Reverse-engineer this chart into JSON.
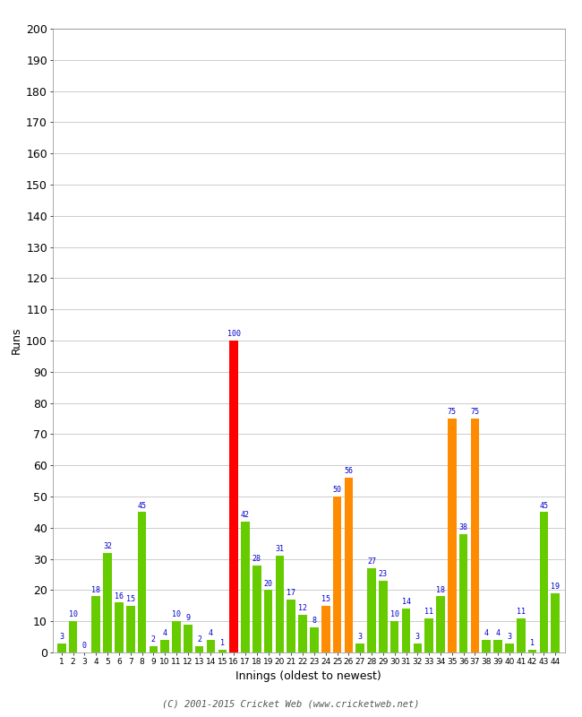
{
  "innings": [
    1,
    2,
    3,
    4,
    5,
    6,
    7,
    8,
    9,
    10,
    11,
    12,
    13,
    14,
    15,
    16,
    17,
    18,
    19,
    20,
    21,
    22,
    23,
    24,
    25,
    26,
    27,
    28,
    29,
    30,
    31,
    32,
    33,
    34,
    35,
    36,
    37,
    38,
    39,
    40,
    41,
    42,
    43,
    44
  ],
  "values": [
    3,
    10,
    0,
    18,
    32,
    16,
    15,
    45,
    2,
    4,
    10,
    9,
    2,
    4,
    1,
    100,
    42,
    28,
    20,
    31,
    17,
    12,
    8,
    15,
    50,
    56,
    3,
    27,
    23,
    10,
    14,
    3,
    11,
    18,
    75,
    38,
    75,
    4,
    4,
    3,
    11,
    1,
    45,
    19
  ],
  "colors": [
    "#66cc00",
    "#66cc00",
    "#66cc00",
    "#66cc00",
    "#66cc00",
    "#66cc00",
    "#66cc00",
    "#66cc00",
    "#66cc00",
    "#66cc00",
    "#66cc00",
    "#66cc00",
    "#66cc00",
    "#66cc00",
    "#66cc00",
    "#ff0000",
    "#66cc00",
    "#66cc00",
    "#66cc00",
    "#66cc00",
    "#66cc00",
    "#66cc00",
    "#66cc00",
    "#ff8c00",
    "#ff8c00",
    "#ff8c00",
    "#66cc00",
    "#66cc00",
    "#66cc00",
    "#66cc00",
    "#66cc00",
    "#66cc00",
    "#66cc00",
    "#66cc00",
    "#ff8c00",
    "#66cc00",
    "#ff8c00",
    "#66cc00",
    "#66cc00",
    "#66cc00",
    "#66cc00",
    "#66cc00",
    "#66cc00",
    "#66cc00"
  ],
  "ylabel": "Runs",
  "xlabel": "Innings (oldest to newest)",
  "footer": "(C) 2001-2015 Cricket Web (www.cricketweb.net)",
  "ylim": [
    0,
    200
  ],
  "yticks": [
    0,
    10,
    20,
    30,
    40,
    50,
    60,
    70,
    80,
    90,
    100,
    110,
    120,
    130,
    140,
    150,
    160,
    170,
    180,
    190,
    200
  ],
  "label_color": "#0000cc",
  "bg_color": "#ffffff",
  "grid_color": "#cccccc"
}
